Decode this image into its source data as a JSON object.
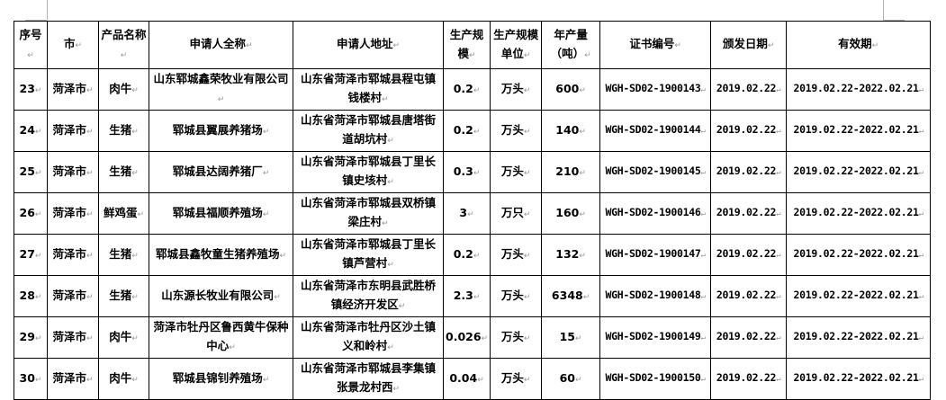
{
  "headers": [
    "序号",
    "市",
    "产品名称",
    "申请人全称",
    "申请人地址",
    "生产规模",
    "生产规模单位",
    "年产量（吨）",
    "证书编号",
    "颁发日期",
    "有效期"
  ],
  "rows": [
    [
      "23",
      "菏泽市",
      "肉牛",
      "山东郓城鑫荣牧业有限公司",
      "山东省菏泽市郓城县程屯镇钱楼村",
      "0.2",
      "万头",
      "600",
      "WGH-SD02-1900143",
      "2019.02.22",
      "2019.02.22-2022.02.21"
    ],
    [
      "24",
      "菏泽市",
      "生猪",
      "郓城县翼展养猪场",
      "山东省菏泽市郓城县唐塔街道胡坑村",
      "0.2",
      "万头",
      "140",
      "WGH-SD02-1900144",
      "2019.02.22",
      "2019.02.22-2022.02.21"
    ],
    [
      "25",
      "菏泽市",
      "生猪",
      "郓城县达阔养猪厂",
      "山东省菏泽市郓城县丁里长镇史垓村",
      "0.3",
      "万头",
      "210",
      "WGH-SD02-1900145",
      "2019.02.22",
      "2019.02.22-2022.02.21"
    ],
    [
      "26",
      "菏泽市",
      "鲜鸡蛋",
      "郓城县福顺养殖场",
      "山东省菏泽市郓城县双桥镇梁庄村",
      "3",
      "万只",
      "160",
      "WGH-SD02-1900146",
      "2019.02.22",
      "2019.02.22-2022.02.21"
    ],
    [
      "27",
      "菏泽市",
      "生猪",
      "郓城县鑫牧童生猪养殖场",
      "山东省菏泽市郓城县丁里长镇芦营村",
      "0.2",
      "万头",
      "132",
      "WGH-SD02-1900147",
      "2019.02.22",
      "2019.02.22-2022.02.21"
    ],
    [
      "28",
      "菏泽市",
      "生猪",
      "山东源长牧业有限公司",
      "山东省菏泽市东明县武胜桥镇经济开发区",
      "2.3",
      "万头",
      "6348",
      "WGH-SD02-1900148",
      "2019.02.22",
      "2019.02.22-2022.02.21"
    ],
    [
      "29",
      "菏泽市",
      "肉牛",
      "菏泽市牡丹区鲁西黄牛保种中心",
      "山东省菏泽市牡丹区沙土镇义和岭村",
      "0.026",
      "万头",
      "15",
      "WGH-SD02-1900149",
      "2019.02.22",
      "2019.02.22-2022.02.21"
    ],
    [
      "30",
      "菏泽市",
      "肉牛",
      "郓城县锦钊养殖场",
      "山东省菏泽市郓城县李集镇张景龙村西",
      "0.04",
      "万头",
      "60",
      "WGH-SD02-1900150",
      "2019.02.22",
      "2019.02.22-2022.02.21"
    ]
  ]
}
